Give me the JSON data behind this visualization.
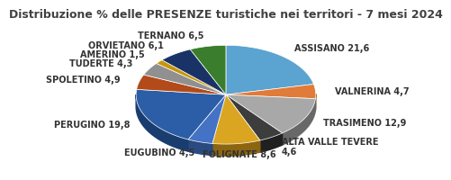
{
  "title": "Distribuzione % delle PRESENZE turistiche nei territori - 7 mesi 2024",
  "labels": [
    "ASSISANO 21,6",
    "VALNERINA 4,7",
    "TRASIMENO 12,9",
    "ALTA VALLE TEVERE\n4,6",
    "FOLIGNATE 8,6",
    "EUGUBINO 4,5",
    "PERUGINO 19,8",
    "SPOLETINO 4,9",
    "TUDERTE 4,3",
    "AMERINO 1,5",
    "ORVIETANO 6,1",
    "TERNANO 6,5"
  ],
  "values": [
    21.6,
    4.7,
    12.9,
    4.6,
    8.6,
    4.5,
    19.8,
    4.9,
    4.3,
    1.5,
    6.1,
    6.5
  ],
  "colors": [
    "#5BA3D0",
    "#E07B39",
    "#A8A8A8",
    "#3D3D3D",
    "#DAA520",
    "#4472C4",
    "#2B5EA7",
    "#B34A1A",
    "#909090",
    "#C8960C",
    "#1A3366",
    "#3A7D2C"
  ],
  "shadow_colors": [
    "#3A7090",
    "#8B4D20",
    "#686868",
    "#202020",
    "#8B6510",
    "#2A4A80",
    "#1A3D70",
    "#722A08",
    "#505050",
    "#805E08",
    "#0A1C40",
    "#1A4D10"
  ],
  "startangle": 90,
  "title_fontsize": 9,
  "label_fontsize": 7,
  "depth": 0.12,
  "yscale": 0.55
}
